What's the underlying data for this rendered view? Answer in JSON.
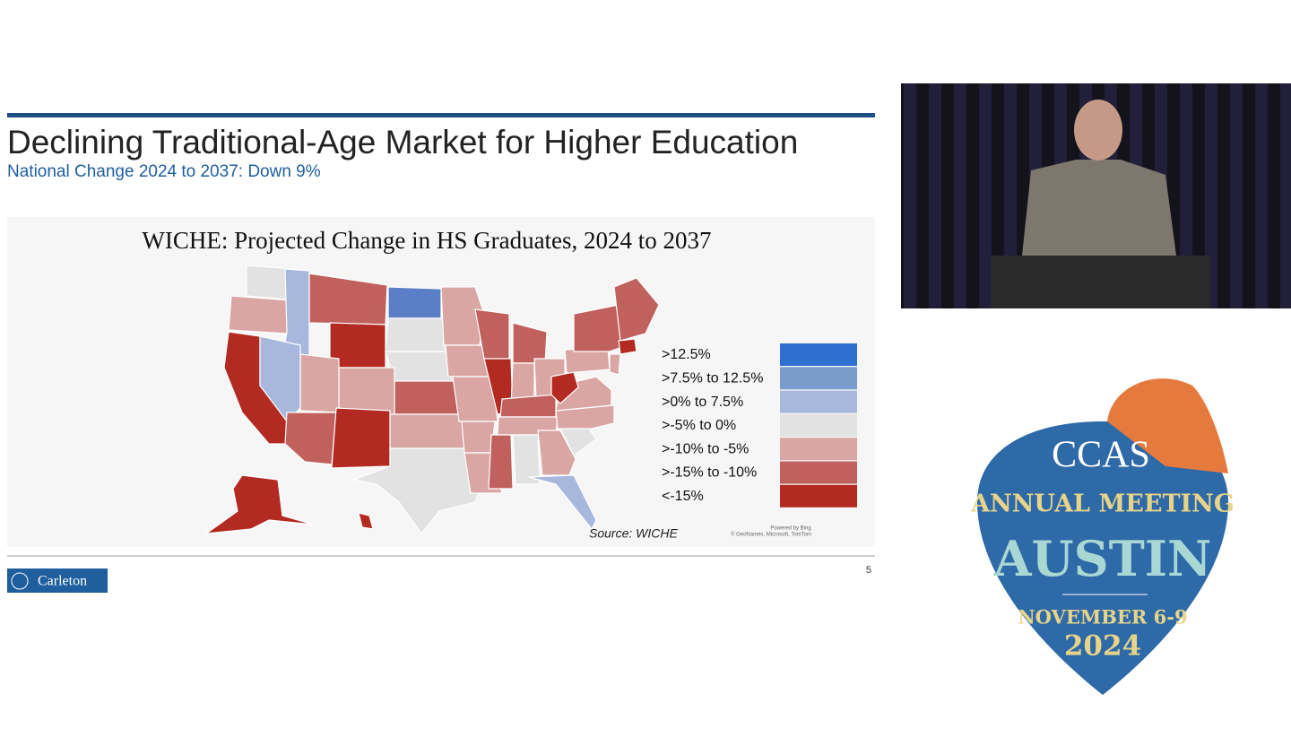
{
  "slide": {
    "title": "Declining Traditional-Age Market for Higher Education",
    "subtitle": "National Change 2024 to 2037: Down 9%",
    "map_title": "WICHE: Projected Change in HS Graduates, 2024 to 2037",
    "legend": [
      {
        "label": ">12.5%",
        "color": "#2f6fce"
      },
      {
        "label": ">7.5% to 12.5%",
        "color": "#7a9ccc"
      },
      {
        "label": ">0% to 7.5%",
        "color": "#a7b8dc"
      },
      {
        "label": ">-5% to 0%",
        "color": "#e2e2e2"
      },
      {
        "label": ">-10% to -5%",
        "color": "#d9a6a4"
      },
      {
        "label": ">-15% to -10%",
        "color": "#c0615d"
      },
      {
        "label": "<-15%",
        "color": "#b22a22"
      }
    ],
    "source": "Source: WICHE",
    "powered": "Powered by Bing",
    "credits": "© GeoNames, Microsoft, TomTom",
    "page_number": "5",
    "logo": "Carleton"
  },
  "event_logo": {
    "org": "CCAS",
    "line1": "ANNUAL MEETING",
    "city": "AUSTIN",
    "dates": "NOVEMBER 6-9",
    "year": "2024"
  }
}
